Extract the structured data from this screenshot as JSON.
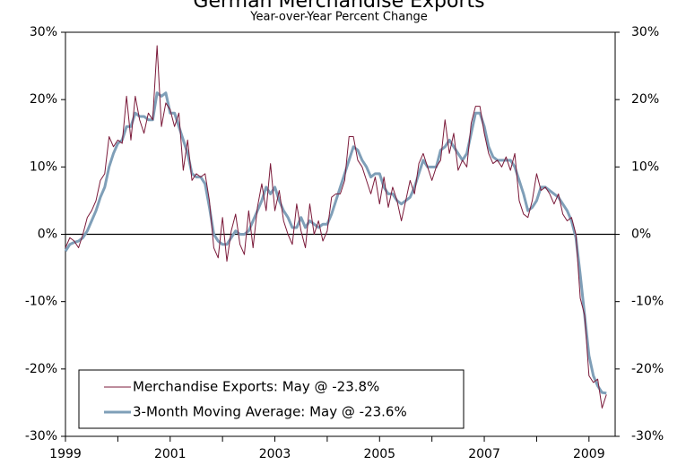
{
  "chart_data": {
    "type": "line",
    "title": "German Merchandise Exports",
    "subtitle": "Year-over-Year Percent Change",
    "x": [
      "1999-01",
      "1999-02",
      "1999-03",
      "1999-04",
      "1999-05",
      "1999-06",
      "1999-07",
      "1999-08",
      "1999-09",
      "1999-10",
      "1999-11",
      "1999-12",
      "2000-01",
      "2000-02",
      "2000-03",
      "2000-04",
      "2000-05",
      "2000-06",
      "2000-07",
      "2000-08",
      "2000-09",
      "2000-10",
      "2000-11",
      "2000-12",
      "2001-01",
      "2001-02",
      "2001-03",
      "2001-04",
      "2001-05",
      "2001-06",
      "2001-07",
      "2001-08",
      "2001-09",
      "2001-10",
      "2001-11",
      "2001-12",
      "2002-01",
      "2002-02",
      "2002-03",
      "2002-04",
      "2002-05",
      "2002-06",
      "2002-07",
      "2002-08",
      "2002-09",
      "2002-10",
      "2002-11",
      "2002-12",
      "2003-01",
      "2003-02",
      "2003-03",
      "2003-04",
      "2003-05",
      "2003-06",
      "2003-07",
      "2003-08",
      "2003-09",
      "2003-10",
      "2003-11",
      "2003-12",
      "2004-01",
      "2004-02",
      "2004-03",
      "2004-04",
      "2004-05",
      "2004-06",
      "2004-07",
      "2004-08",
      "2004-09",
      "2004-10",
      "2004-11",
      "2004-12",
      "2005-01",
      "2005-02",
      "2005-03",
      "2005-04",
      "2005-05",
      "2005-06",
      "2005-07",
      "2005-08",
      "2005-09",
      "2005-10",
      "2005-11",
      "2005-12",
      "2006-01",
      "2006-02",
      "2006-03",
      "2006-04",
      "2006-05",
      "2006-06",
      "2006-07",
      "2006-08",
      "2006-09",
      "2006-10",
      "2006-11",
      "2006-12",
      "2007-01",
      "2007-02",
      "2007-03",
      "2007-04",
      "2007-05",
      "2007-06",
      "2007-07",
      "2007-08",
      "2007-09",
      "2007-10",
      "2007-11",
      "2007-12",
      "2008-01",
      "2008-02",
      "2008-03",
      "2008-04",
      "2008-05",
      "2008-06",
      "2008-07",
      "2008-08",
      "2008-09",
      "2008-10",
      "2008-11",
      "2008-12",
      "2009-01",
      "2009-02",
      "2009-03",
      "2009-04",
      "2009-05"
    ],
    "series": [
      {
        "name": "Merchandise Exports: May @ -23.8%",
        "color": "#7b1a3a",
        "width": 1,
        "values": [
          -2,
          -0.5,
          -1,
          -2,
          0,
          2.5,
          3.5,
          5,
          8,
          9,
          14.5,
          13,
          14,
          13.5,
          20.5,
          14,
          20.5,
          17,
          15,
          18,
          17,
          28,
          16,
          19.5,
          18.5,
          16,
          18,
          9.5,
          14,
          8,
          9,
          8.5,
          9,
          5,
          -2,
          -3.5,
          2.5,
          -4,
          0.5,
          3,
          -1.5,
          -3,
          3.5,
          -2,
          4,
          7.5,
          3.5,
          10.5,
          3.5,
          6.5,
          2,
          0,
          -1.5,
          4.5,
          0.5,
          -2,
          4.5,
          0,
          2,
          -1,
          0.5,
          5.5,
          6,
          6,
          8,
          14.5,
          14.5,
          11,
          10,
          8,
          6,
          8.5,
          4.5,
          8.5,
          4,
          7,
          5,
          2,
          5,
          8,
          6,
          10.5,
          12,
          10,
          8,
          10,
          11,
          17,
          12,
          15,
          9.5,
          11,
          10,
          16.5,
          19,
          19,
          15,
          12,
          10.5,
          11,
          10,
          11.5,
          9.5,
          12,
          5,
          3,
          2.5,
          5,
          9,
          6.5,
          7,
          6,
          4.5,
          6,
          3,
          2,
          2.5,
          0,
          -9.5,
          -12,
          -21,
          -22,
          -21.5,
          -25.8,
          -23.8
        ]
      },
      {
        "name": "3-Month Moving Average: May @ -23.6%",
        "color": "#7f9fb8",
        "width": 3,
        "values": [
          -2.5,
          -1.5,
          -1.2,
          -1,
          -0.5,
          0.5,
          2,
          3.5,
          5.5,
          7,
          10,
          12,
          13.5,
          14,
          16,
          16,
          18,
          17.5,
          17.5,
          17,
          17,
          21,
          20.5,
          21,
          18,
          18,
          16,
          14,
          12,
          9,
          8.5,
          8.5,
          7.5,
          4,
          0,
          -1,
          -1.5,
          -1.5,
          -0.5,
          0.5,
          0,
          0,
          0.5,
          2,
          3.5,
          5,
          7,
          6,
          7,
          5,
          3.5,
          2.5,
          1,
          1,
          2.5,
          1,
          2,
          1.5,
          1,
          1.5,
          1.5,
          3,
          5,
          7,
          9,
          11,
          13,
          12.5,
          11,
          10,
          8.5,
          9,
          9,
          7,
          6,
          6,
          5,
          4.5,
          5,
          5.5,
          7,
          9,
          11,
          10,
          10,
          10,
          12.5,
          13,
          14,
          13,
          12,
          11,
          12,
          15,
          18,
          18,
          16,
          13,
          11.5,
          11,
          11,
          11,
          11,
          10,
          8,
          6,
          3.5,
          4,
          5,
          7,
          7,
          6.5,
          6,
          5.5,
          4.5,
          3.5,
          2,
          -0.5,
          -6,
          -12,
          -18,
          -21,
          -22.5,
          -23.5,
          -23.6
        ]
      }
    ],
    "xlim": [
      1999,
      2009.5
    ],
    "xticks": [
      1999,
      2001,
      2003,
      2005,
      2007,
      2009
    ],
    "xminor_ticks": [
      2000,
      2002,
      2004,
      2006,
      2008
    ],
    "ylim": [
      -30,
      30
    ],
    "yticks": [
      {
        "value": -30,
        "label": "-30%"
      },
      {
        "value": -20,
        "label": "-20%"
      },
      {
        "value": -10,
        "label": "-10%"
      },
      {
        "value": 0,
        "label": "0%"
      },
      {
        "value": 10,
        "label": "10%"
      },
      {
        "value": 20,
        "label": "20%"
      },
      {
        "value": 30,
        "label": "30%"
      }
    ],
    "mirror_y_axis": true,
    "zero_line": true,
    "legend": "lower left"
  }
}
